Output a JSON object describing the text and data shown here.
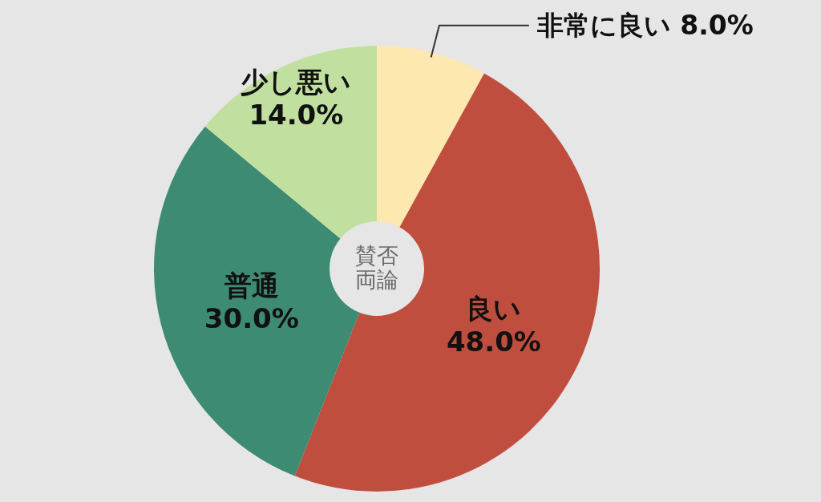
{
  "chart_data": {
    "type": "donut",
    "categories": [
      "非常に良い",
      "良い",
      "普通",
      "少し悪い"
    ],
    "values": [
      8,
      48,
      30,
      14
    ],
    "colors": [
      "#fde9b0",
      "#c04e3e",
      "#3d8b73",
      "#c1e0a0"
    ],
    "value_labels": [
      "8.0%",
      "48.0%",
      "30.0%",
      "14.0%"
    ],
    "annotations": [
      "賛否両論"
    ]
  }
}
